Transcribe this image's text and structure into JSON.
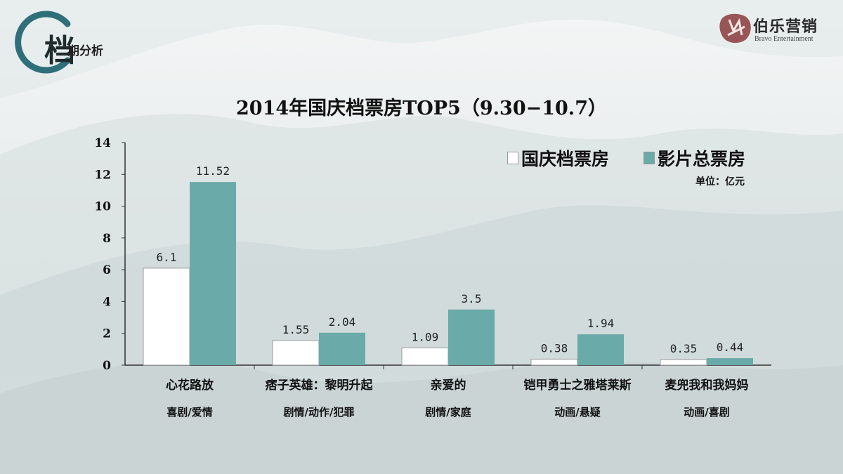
{
  "header": {
    "badge_char": "档",
    "section_title": "期分析",
    "logo_name": "伯乐营销",
    "logo_sub": "Bravo Entertainment"
  },
  "colors": {
    "domestic_bar": "#ffffff",
    "total_bar": "#6aaaa8",
    "axis": "#333333",
    "badge_ring": "#2f6f7a"
  },
  "chart_data": {
    "type": "bar",
    "title": "2014年国庆档票房TOP5（9.30−10.7）",
    "unit": "单位：亿元",
    "ylim": [
      0,
      14
    ],
    "yticks": [
      0,
      2,
      4,
      6,
      8,
      10,
      12,
      14
    ],
    "legend_position": "top-right",
    "grid": false,
    "categories": [
      "心花路放",
      "痞子英雄：黎明升起",
      "亲爱的",
      "铠甲勇士之雅塔莱斯",
      "麦兜我和我妈妈"
    ],
    "genres": [
      "喜剧/爱情",
      "剧情/动作/犯罪",
      "剧情/家庭",
      "动画/悬疑",
      "动画/喜剧"
    ],
    "series": [
      {
        "name": "国庆档票房",
        "values": [
          6.1,
          1.55,
          1.09,
          0.38,
          0.35
        ],
        "labels": [
          "6.1",
          "1.55",
          "1.09",
          "0.38",
          "0.35"
        ]
      },
      {
        "name": "影片总票房",
        "values": [
          11.52,
          2.04,
          3.5,
          1.94,
          0.44
        ],
        "labels": [
          "11.52",
          "2.04",
          "3.5",
          "1.94",
          "0.44"
        ]
      }
    ]
  }
}
